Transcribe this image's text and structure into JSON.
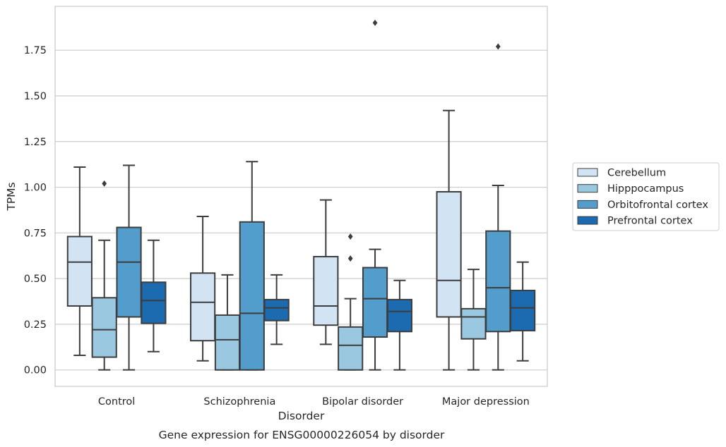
{
  "chart_data": {
    "type": "boxplot",
    "xlabel": "Disorder",
    "ylabel": "TPMs",
    "caption": "Gene expression for ENSG00000226054 by disorder",
    "categories": [
      "Control",
      "Schizophrenia",
      "Bipolar disorder",
      "Major depression"
    ],
    "yticks": [
      "0.00",
      "0.25",
      "0.50",
      "0.75",
      "1.00",
      "1.25",
      "1.50",
      "1.75"
    ],
    "ylim": [
      -0.09,
      1.99
    ],
    "grid": "horizontal",
    "legend_position": "right",
    "series": [
      {
        "name": "Cerebellum",
        "color": "#d2e3f3",
        "boxes": [
          {
            "whislo": 0.08,
            "q1": 0.35,
            "med": 0.59,
            "q3": 0.73,
            "whishi": 1.11,
            "fliers": []
          },
          {
            "whislo": 0.05,
            "q1": 0.16,
            "med": 0.37,
            "q3": 0.53,
            "whishi": 0.84,
            "fliers": []
          },
          {
            "whislo": 0.14,
            "q1": 0.245,
            "med": 0.35,
            "q3": 0.62,
            "whishi": 0.93,
            "fliers": []
          },
          {
            "whislo": 0.0,
            "q1": 0.29,
            "med": 0.49,
            "q3": 0.975,
            "whishi": 1.42,
            "fliers": []
          }
        ]
      },
      {
        "name": "Hipppocampus",
        "color": "#9ac8e0",
        "boxes": [
          {
            "whislo": 0.0,
            "q1": 0.07,
            "med": 0.22,
            "q3": 0.395,
            "whishi": 0.71,
            "fliers": [
              1.02
            ]
          },
          {
            "whislo": 0.0,
            "q1": 0.0,
            "med": 0.165,
            "q3": 0.3,
            "whishi": 0.52,
            "fliers": []
          },
          {
            "whislo": 0.0,
            "q1": 0.0,
            "med": 0.135,
            "q3": 0.235,
            "whishi": 0.39,
            "fliers": [
              0.61,
              0.73
            ]
          },
          {
            "whislo": 0.0,
            "q1": 0.17,
            "med": 0.29,
            "q3": 0.335,
            "whishi": 0.55,
            "fliers": []
          }
        ]
      },
      {
        "name": "Orbitofrontal cortex",
        "color": "#529dcc",
        "boxes": [
          {
            "whislo": 0.0,
            "q1": 0.29,
            "med": 0.59,
            "q3": 0.78,
            "whishi": 1.12,
            "fliers": []
          },
          {
            "whislo": 0.0,
            "q1": 0.0,
            "med": 0.31,
            "q3": 0.81,
            "whishi": 1.14,
            "fliers": []
          },
          {
            "whislo": 0.0,
            "q1": 0.18,
            "med": 0.39,
            "q3": 0.56,
            "whishi": 0.66,
            "fliers": [
              1.9
            ]
          },
          {
            "whislo": 0.0,
            "q1": 0.21,
            "med": 0.45,
            "q3": 0.76,
            "whishi": 1.01,
            "fliers": [
              1.77
            ]
          }
        ]
      },
      {
        "name": "Prefrontal cortex",
        "color": "#1c6aaf",
        "boxes": [
          {
            "whislo": 0.1,
            "q1": 0.255,
            "med": 0.38,
            "q3": 0.48,
            "whishi": 0.71,
            "fliers": []
          },
          {
            "whislo": 0.14,
            "q1": 0.27,
            "med": 0.34,
            "q3": 0.385,
            "whishi": 0.52,
            "fliers": []
          },
          {
            "whislo": 0.0,
            "q1": 0.21,
            "med": 0.32,
            "q3": 0.385,
            "whishi": 0.49,
            "fliers": []
          },
          {
            "whislo": 0.05,
            "q1": 0.215,
            "med": 0.34,
            "q3": 0.435,
            "whishi": 0.59,
            "fliers": []
          }
        ]
      }
    ]
  }
}
